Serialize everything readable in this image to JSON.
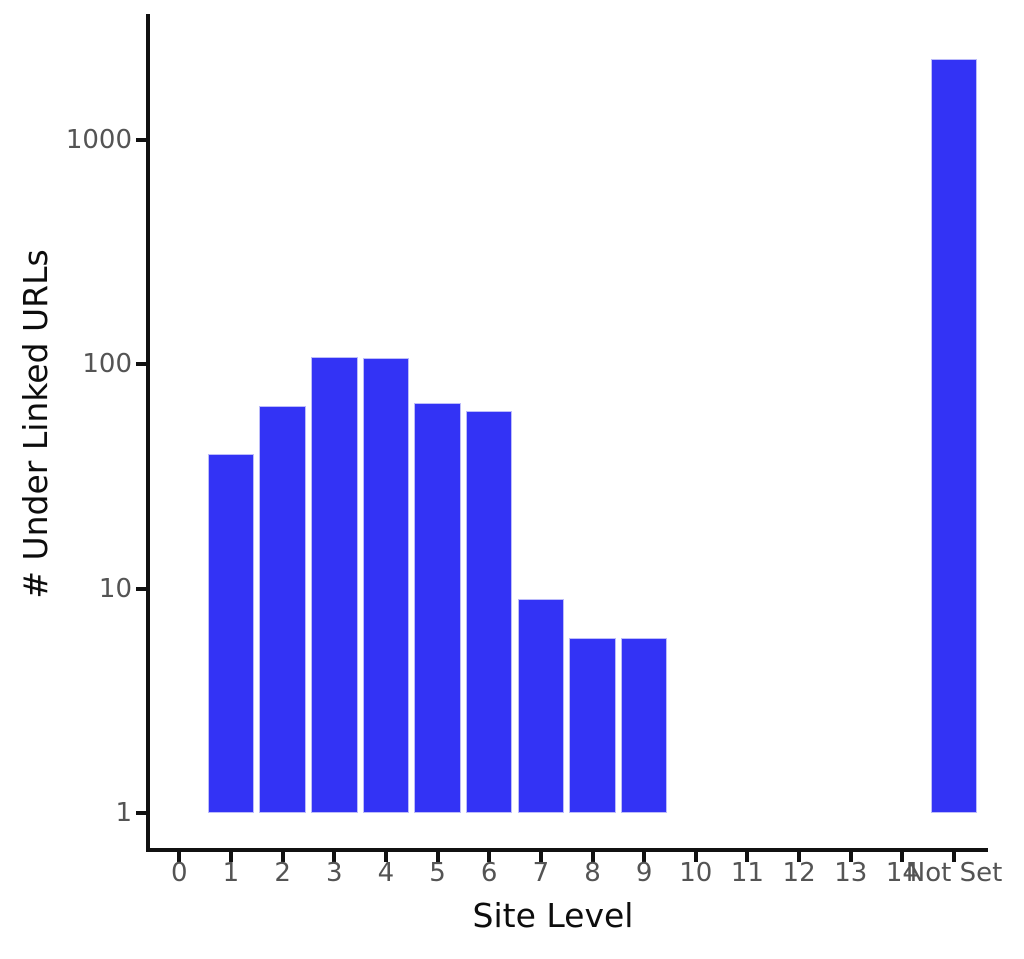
{
  "chart_data": {
    "type": "bar",
    "title": "",
    "xlabel": "Site Level",
    "ylabel": "# Under Linked URLs",
    "yscale": "log",
    "ylim": [
      0.75,
      3700
    ],
    "yticks": [
      1,
      10,
      100,
      1000
    ],
    "ytick_labels": [
      "1",
      "10",
      "100",
      "1000"
    ],
    "categories": [
      "0",
      "1",
      "2",
      "3",
      "4",
      "5",
      "6",
      "7",
      "8",
      "9",
      "10",
      "11",
      "12",
      "13",
      "14",
      "Not Set"
    ],
    "values": [
      null,
      40,
      65,
      108,
      107,
      67,
      62,
      9,
      6,
      6,
      null,
      null,
      null,
      null,
      null,
      2300
    ],
    "grid": false,
    "legend": null,
    "bar_color": "#3333f5",
    "bar_edge_color": "#bcbcfa",
    "tick_label_color": "#545454",
    "axis_label_color": "#0d0d0d",
    "spine_color": "#111111"
  }
}
